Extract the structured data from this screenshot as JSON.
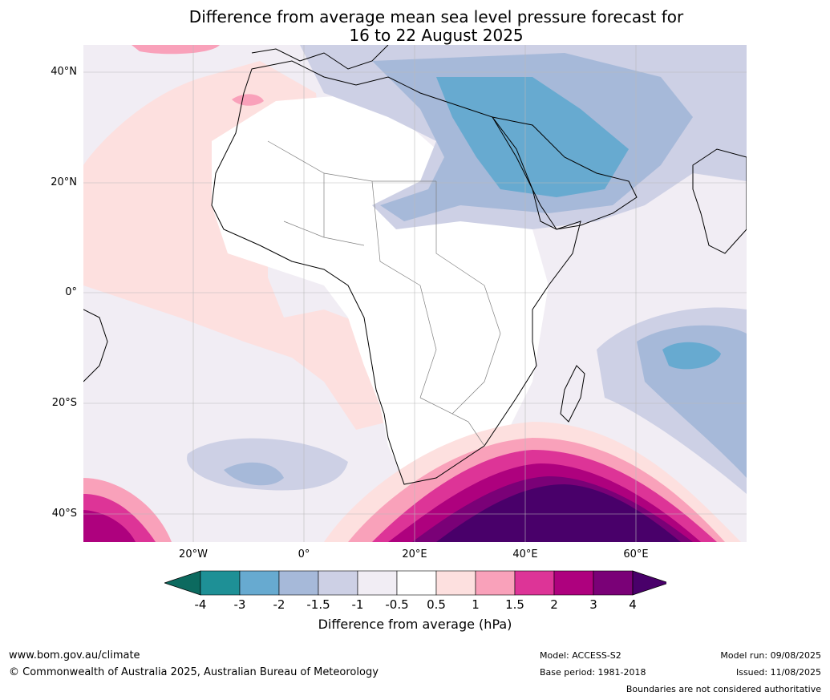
{
  "title_line1": "Difference from average mean sea level pressure forecast for",
  "title_line2": "16 to 22 August 2025",
  "lat_labels": [
    "40°N",
    "20°N",
    "0°",
    "20°S",
    "40°S"
  ],
  "lon_labels": [
    "20°W",
    "0°",
    "20°E",
    "40°E",
    "60°E"
  ],
  "colorbar": {
    "ticks": [
      "-4",
      "-3",
      "-2",
      "-1.5",
      "-1",
      "-0.5",
      "0.5",
      "1",
      "1.5",
      "2",
      "3",
      "4"
    ],
    "colors": [
      "#0c6a5f",
      "#1e9096",
      "#67aad0",
      "#a6b9d9",
      "#cdd0e5",
      "#f1edf4",
      "#ffffff",
      "#fde0df",
      "#f9a1ba",
      "#dd3497",
      "#ae017e",
      "#7a0177",
      "#49006a"
    ],
    "label": "Difference from average (hPa)"
  },
  "footer": {
    "website": "www.bom.gov.au/climate",
    "copyright": "© Commonwealth of Australia 2025, Australian Bureau of Meteorology",
    "model": "Model: ACCESS-S2",
    "base_period": "Base period: 1981-2018",
    "model_run": "Model run: 09/08/2025",
    "issued": "Issued: 11/08/2025",
    "disclaimer": "Boundaries are not considered authoritative"
  }
}
